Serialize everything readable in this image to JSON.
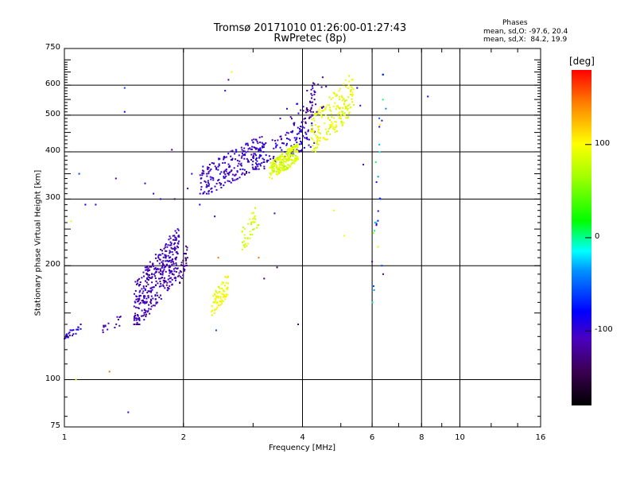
{
  "header": {
    "title": "Tromsø 20171010 01:26:00-01:27:43",
    "subtitle": "RwPretec (8p)"
  },
  "phase_info": {
    "title": "Phases",
    "line_o": "mean, sd,O: -97.6, 20.4",
    "line_x": "mean, sd,X:  84.2, 19.9"
  },
  "colorbar": {
    "unit": "[deg]",
    "ticks": [
      {
        "value": 100,
        "label": "100"
      },
      {
        "value": 0,
        "label": "0"
      },
      {
        "value": -100,
        "label": "-100"
      }
    ],
    "range": [
      -180,
      180
    ]
  },
  "chart_data": {
    "type": "scatter",
    "title": "Tromsø 20171010 01:26:00-01:27:43",
    "subtitle": "RwPretec (8p)",
    "xlabel": "Frequency [MHz]",
    "ylabel": "Stationary phase Virtual Height [km]",
    "x_scale": "log",
    "y_scale": "log",
    "xlim": [
      1,
      16
    ],
    "ylim": [
      75,
      750
    ],
    "x_ticks": [
      1,
      2,
      4,
      6,
      8,
      10,
      16
    ],
    "y_ticks": [
      75,
      100,
      200,
      300,
      400,
      500,
      600,
      750
    ],
    "color_label": "[deg]",
    "color_range": [
      -180,
      180
    ],
    "grid": true,
    "clusters": [
      {
        "name": "",
        "x_range": [
          1.5,
          1.95
        ],
        "y_range": [
          140,
          250
        ],
        "phase_range": [
          -130,
          -90
        ],
        "count": 380
      },
      {
        "name": "",
        "x_range": [
          1.95,
          2.05
        ],
        "y_range": [
          180,
          230
        ],
        "phase_range": [
          -140,
          -110
        ],
        "count": 30
      },
      {
        "name": "",
        "x_range": [
          2.2,
          3.2
        ],
        "y_range": [
          310,
          440
        ],
        "phase_range": [
          -120,
          -85
        ],
        "count": 230
      },
      {
        "name": "",
        "x_range": [
          3.0,
          4.3
        ],
        "y_range": [
          360,
          480
        ],
        "phase_range": [
          -115,
          -80
        ],
        "count": 120
      },
      {
        "name": "",
        "x_range": [
          3.3,
          3.9
        ],
        "y_range": [
          340,
          420
        ],
        "phase_range": [
          70,
          105
        ],
        "count": 220
      },
      {
        "name": "",
        "x_range": [
          4.2,
          5.4
        ],
        "y_range": [
          400,
          640
        ],
        "phase_range": [
          75,
          110
        ],
        "count": 200
      },
      {
        "name": "",
        "x_range": [
          2.35,
          2.6
        ],
        "y_range": [
          148,
          190
        ],
        "phase_range": [
          80,
          110
        ],
        "count": 80
      },
      {
        "name": "",
        "x_range": [
          2.8,
          3.1
        ],
        "y_range": [
          220,
          290
        ],
        "phase_range": [
          70,
          100
        ],
        "count": 40
      },
      {
        "name": "",
        "x_range": [
          4.0,
          4.3
        ],
        "y_range": [
          440,
          620
        ],
        "phase_range": [
          -140,
          -110
        ],
        "count": 40
      },
      {
        "name": "",
        "x_range": [
          3.5,
          4.6
        ],
        "y_range": [
          440,
          640
        ],
        "phase_range": [
          -130,
          -90
        ],
        "count": 30
      },
      {
        "name": "",
        "x_range": [
          1.0,
          1.1
        ],
        "y_range": [
          128,
          140
        ],
        "phase_range": [
          -110,
          -80
        ],
        "count": 25
      },
      {
        "name": "",
        "x_range": [
          1.25,
          1.4
        ],
        "y_range": [
          130,
          150
        ],
        "phase_range": [
          -130,
          -100
        ],
        "count": 15
      },
      {
        "name": "",
        "x_range": [
          6.0,
          6.4
        ],
        "y_range": [
          160,
          640
        ],
        "phase_range": [
          -120,
          110
        ],
        "count": 25
      }
    ],
    "points": [
      {
        "x": 1.04,
        "y": 262,
        "phase": 90
      },
      {
        "x": 1.07,
        "y": 100,
        "phase": 85
      },
      {
        "x": 1.3,
        "y": 105,
        "phase": 150
      },
      {
        "x": 1.45,
        "y": 82,
        "phase": -100
      },
      {
        "x": 1.42,
        "y": 590,
        "phase": -60
      },
      {
        "x": 1.42,
        "y": 510,
        "phase": -90
      },
      {
        "x": 1.09,
        "y": 350,
        "phase": -60
      },
      {
        "x": 1.13,
        "y": 290,
        "phase": -80
      },
      {
        "x": 1.2,
        "y": 290,
        "phase": -90
      },
      {
        "x": 1.35,
        "y": 340,
        "phase": -110
      },
      {
        "x": 1.6,
        "y": 330,
        "phase": -100
      },
      {
        "x": 1.68,
        "y": 310,
        "phase": -100
      },
      {
        "x": 1.75,
        "y": 300,
        "phase": -90
      },
      {
        "x": 1.87,
        "y": 405,
        "phase": -120
      },
      {
        "x": 1.9,
        "y": 300,
        "phase": -140
      },
      {
        "x": 2.05,
        "y": 320,
        "phase": -90
      },
      {
        "x": 2.1,
        "y": 350,
        "phase": -100
      },
      {
        "x": 2.2,
        "y": 290,
        "phase": -90
      },
      {
        "x": 2.4,
        "y": 270,
        "phase": -90
      },
      {
        "x": 2.45,
        "y": 210,
        "phase": 150
      },
      {
        "x": 2.42,
        "y": 135,
        "phase": -60
      },
      {
        "x": 2.55,
        "y": 580,
        "phase": -100
      },
      {
        "x": 2.6,
        "y": 620,
        "phase": -110
      },
      {
        "x": 2.65,
        "y": 650,
        "phase": 95
      },
      {
        "x": 3.1,
        "y": 210,
        "phase": 150
      },
      {
        "x": 3.2,
        "y": 185,
        "phase": -130
      },
      {
        "x": 3.4,
        "y": 275,
        "phase": -100
      },
      {
        "x": 3.45,
        "y": 198,
        "phase": -140
      },
      {
        "x": 3.9,
        "y": 140,
        "phase": -120
      },
      {
        "x": 4.8,
        "y": 280,
        "phase": 90
      },
      {
        "x": 5.1,
        "y": 240,
        "phase": 95
      },
      {
        "x": 5.5,
        "y": 590,
        "phase": -90
      },
      {
        "x": 5.6,
        "y": 530,
        "phase": -110
      },
      {
        "x": 5.7,
        "y": 370,
        "phase": -110
      },
      {
        "x": 6.0,
        "y": 205,
        "phase": -110
      },
      {
        "x": 6.35,
        "y": 200,
        "phase": -60
      },
      {
        "x": 6.4,
        "y": 640,
        "phase": -70
      },
      {
        "x": 6.5,
        "y": 520,
        "phase": -40
      },
      {
        "x": 6.4,
        "y": 190,
        "phase": -120
      },
      {
        "x": 8.3,
        "y": 560,
        "phase": -90
      },
      {
        "x": 6.3,
        "y": 300,
        "phase": -60
      }
    ]
  }
}
